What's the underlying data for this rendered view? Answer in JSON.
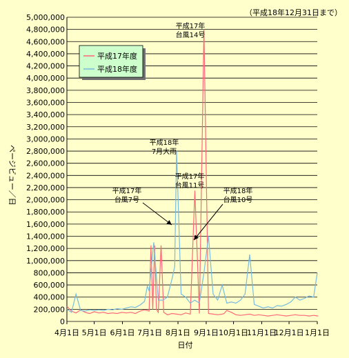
{
  "note": "（平成18年12月31日まで）",
  "chart_data": {
    "type": "line",
    "xlabel": "日付",
    "ylabel": "ページビュー／日",
    "ylim": [
      0,
      5000000
    ],
    "yticks": [
      0,
      200000,
      400000,
      600000,
      800000,
      1000000,
      1200000,
      1400000,
      1600000,
      1800000,
      2000000,
      2200000,
      2400000,
      2600000,
      2800000,
      3000000,
      3200000,
      3400000,
      3600000,
      3800000,
      4000000,
      4200000,
      4400000,
      4600000,
      4800000,
      5000000
    ],
    "ytick_labels": [
      "0",
      "200,000",
      "400,000",
      "600,000",
      "800,000",
      "1,000,000",
      "1,200,000",
      "1,400,000",
      "1,600,000",
      "1,800,000",
      "2,000,000",
      "2,200,000",
      "2,400,000",
      "2,600,000",
      "2,800,000",
      "3,000,000",
      "3,200,000",
      "3,400,000",
      "3,600,000",
      "3,800,000",
      "4,000,000",
      "4,200,000",
      "4,400,000",
      "4,600,000",
      "4,800,000",
      "5,000,000"
    ],
    "xticks": [
      "4月1日",
      "5月1日",
      "6月1日",
      "7月1日",
      "8月1日",
      "9月1日",
      "10月1日",
      "11月1日",
      "12月1日",
      "1月1日"
    ],
    "grid": "horizontal",
    "legend_position": "top-left",
    "series": [
      {
        "name": "平成17年度",
        "color": "#ff6677",
        "x": [
          0,
          5,
          10,
          15,
          20,
          25,
          30,
          35,
          40,
          45,
          50,
          55,
          60,
          65,
          70,
          75,
          80,
          85,
          90,
          92,
          94,
          96,
          98,
          100,
          103,
          106,
          110,
          115,
          120,
          125,
          130,
          135,
          140,
          145,
          150,
          155,
          160,
          165,
          170,
          172,
          175,
          180,
          185,
          190,
          195,
          200,
          205,
          210,
          215,
          220,
          225,
          230,
          235,
          240,
          245,
          250,
          255,
          260,
          265,
          270,
          275
        ],
        "values": [
          250000,
          170000,
          140000,
          190000,
          150000,
          130000,
          160000,
          140000,
          150000,
          130000,
          140000,
          130000,
          150000,
          140000,
          150000,
          130000,
          170000,
          190000,
          170000,
          1250000,
          200000,
          1250000,
          200000,
          150000,
          1250000,
          150000,
          110000,
          130000,
          120000,
          110000,
          140000,
          120000,
          2150000,
          130000,
          4800000,
          130000,
          120000,
          110000,
          120000,
          130000,
          180000,
          150000,
          110000,
          100000,
          110000,
          120000,
          100000,
          110000,
          100000,
          90000,
          100000,
          110000,
          100000,
          90000,
          100000,
          110000,
          100000,
          100000,
          90000,
          100000,
          90000
        ]
      },
      {
        "name": "平成18年度",
        "color": "#77bbdd",
        "x": [
          0,
          5,
          10,
          15,
          20,
          25,
          30,
          35,
          40,
          45,
          50,
          55,
          60,
          65,
          70,
          75,
          80,
          85,
          88,
          90,
          95,
          100,
          105,
          110,
          115,
          118,
          120,
          125,
          130,
          135,
          140,
          145,
          150,
          155,
          160,
          165,
          170,
          175,
          180,
          185,
          190,
          195,
          200,
          205,
          210,
          215,
          220,
          225,
          230,
          235,
          240,
          245,
          250,
          255,
          260,
          265,
          270,
          274
        ],
        "values": [
          200000,
          150000,
          450000,
          180000,
          170000,
          190000,
          180000,
          190000,
          180000,
          200000,
          190000,
          210000,
          200000,
          220000,
          240000,
          230000,
          270000,
          330000,
          580000,
          500000,
          1300000,
          350000,
          350000,
          400000,
          700000,
          900000,
          2800000,
          450000,
          400000,
          300000,
          350000,
          300000,
          800000,
          1400000,
          450000,
          350000,
          600000,
          300000,
          320000,
          300000,
          350000,
          450000,
          1100000,
          280000,
          250000,
          220000,
          240000,
          220000,
          260000,
          250000,
          280000,
          320000,
          400000,
          350000,
          380000,
          420000,
          400000,
          800000
        ]
      }
    ],
    "annotations": [
      {
        "lines": [
          "平成17年",
          "台風14号"
        ],
        "x": 150,
        "y": 4800000
      },
      {
        "lines": [
          "平成18年",
          "7月大雨"
        ],
        "x": 120,
        "y": 2800000
      },
      {
        "lines": [
          "平成17年",
          "台風11号"
        ],
        "x": 140,
        "y": 2150000
      },
      {
        "lines": [
          "平成17年",
          "台風7号"
        ],
        "x": 115,
        "y": 1600000
      },
      {
        "lines": [
          "平成18年",
          "台風10号"
        ],
        "x": 155,
        "y": 1350000
      }
    ]
  }
}
